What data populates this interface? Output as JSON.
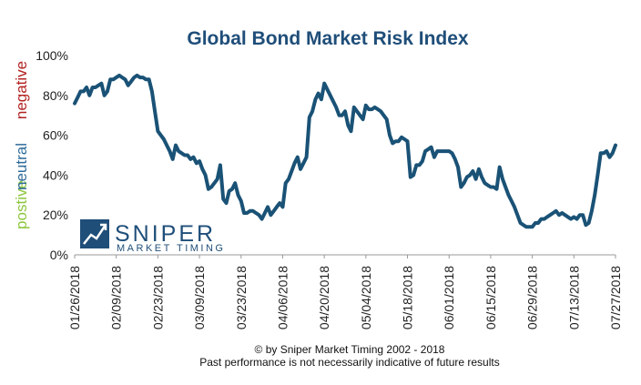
{
  "chart_data": {
    "type": "line",
    "title": "Global Bond Market Risk Index",
    "ylim": [
      0,
      100
    ],
    "y_ticks": [
      "0%",
      "20%",
      "40%",
      "60%",
      "80%",
      "100%"
    ],
    "x_ticks": [
      "01/26/2018",
      "02/09/2018",
      "02/23/2018",
      "03/09/2018",
      "03/23/2018",
      "04/06/2018",
      "04/20/2018",
      "05/04/2018",
      "05/18/2018",
      "06/01/2018",
      "06/15/2018",
      "06/29/2018",
      "07/13/2018",
      "07/27/2018"
    ],
    "zone_labels": {
      "positive": "postive",
      "neutral": "neutral",
      "negative": "negative"
    },
    "grid": false,
    "series": [
      {
        "x": [
          "2018-01-26",
          "2018-01-27",
          "2018-01-28",
          "2018-01-29",
          "2018-01-30",
          "2018-01-31",
          "2018-02-01",
          "2018-02-02",
          "2018-02-03",
          "2018-02-04",
          "2018-02-05",
          "2018-02-06",
          "2018-02-07",
          "2018-02-08",
          "2018-02-09",
          "2018-02-10",
          "2018-02-11",
          "2018-02-12",
          "2018-02-13",
          "2018-02-14",
          "2018-02-15",
          "2018-02-16",
          "2018-02-17",
          "2018-02-18",
          "2018-02-19",
          "2018-02-20",
          "2018-02-21",
          "2018-02-22",
          "2018-02-23",
          "2018-02-25",
          "2018-02-27",
          "2018-02-28",
          "2018-03-01",
          "2018-03-02",
          "2018-03-03",
          "2018-03-04",
          "2018-03-05",
          "2018-03-06",
          "2018-03-07",
          "2018-03-08",
          "2018-03-09",
          "2018-03-10",
          "2018-03-11",
          "2018-03-12",
          "2018-03-13",
          "2018-03-14",
          "2018-03-15",
          "2018-03-16",
          "2018-03-17",
          "2018-03-18",
          "2018-03-19",
          "2018-03-20",
          "2018-03-21",
          "2018-03-22",
          "2018-03-23",
          "2018-03-24",
          "2018-03-25",
          "2018-03-26",
          "2018-03-27",
          "2018-03-28",
          "2018-03-29",
          "2018-03-30",
          "2018-03-31",
          "2018-04-01",
          "2018-04-02",
          "2018-04-03",
          "2018-04-04",
          "2018-04-05",
          "2018-04-06",
          "2018-04-07",
          "2018-04-08",
          "2018-04-09",
          "2018-04-10",
          "2018-04-11",
          "2018-04-12",
          "2018-04-13",
          "2018-04-14",
          "2018-04-15",
          "2018-04-16",
          "2018-04-17",
          "2018-04-18",
          "2018-04-19",
          "2018-04-20",
          "2018-04-22",
          "2018-04-24",
          "2018-04-25",
          "2018-04-26",
          "2018-04-27",
          "2018-04-28",
          "2018-04-29",
          "2018-04-30",
          "2018-05-01",
          "2018-05-02",
          "2018-05-03",
          "2018-05-04",
          "2018-05-05",
          "2018-05-06",
          "2018-05-07",
          "2018-05-08",
          "2018-05-09",
          "2018-05-10",
          "2018-05-11",
          "2018-05-12",
          "2018-05-13",
          "2018-05-14",
          "2018-05-15",
          "2018-05-16",
          "2018-05-17",
          "2018-05-18",
          "2018-05-19",
          "2018-05-20",
          "2018-05-21",
          "2018-05-22",
          "2018-05-23",
          "2018-05-24",
          "2018-05-25",
          "2018-05-26",
          "2018-05-27",
          "2018-05-28",
          "2018-05-29",
          "2018-05-30",
          "2018-05-31",
          "2018-06-01",
          "2018-06-02",
          "2018-06-03",
          "2018-06-04",
          "2018-06-05",
          "2018-06-06",
          "2018-06-07",
          "2018-06-08",
          "2018-06-09",
          "2018-06-10",
          "2018-06-11",
          "2018-06-12",
          "2018-06-13",
          "2018-06-14",
          "2018-06-15",
          "2018-06-16",
          "2018-06-17",
          "2018-06-18",
          "2018-06-19",
          "2018-06-20",
          "2018-06-21",
          "2018-06-22",
          "2018-06-23",
          "2018-06-24",
          "2018-06-25",
          "2018-06-26",
          "2018-06-27",
          "2018-06-28",
          "2018-06-29",
          "2018-06-30",
          "2018-07-01",
          "2018-07-02",
          "2018-07-03",
          "2018-07-04",
          "2018-07-05",
          "2018-07-06",
          "2018-07-07",
          "2018-07-08",
          "2018-07-09",
          "2018-07-10",
          "2018-07-11",
          "2018-07-12",
          "2018-07-13",
          "2018-07-14",
          "2018-07-15",
          "2018-07-16",
          "2018-07-17",
          "2018-07-18",
          "2018-07-19",
          "2018-07-20",
          "2018-07-21",
          "2018-07-22",
          "2018-07-23",
          "2018-07-24",
          "2018-07-25",
          "2018-07-26",
          "2018-07-27"
        ],
        "y": [
          76,
          79,
          82,
          82,
          84,
          80,
          84,
          84,
          85,
          86,
          80,
          82,
          88,
          88,
          89,
          90,
          89,
          88,
          85,
          87,
          89,
          90,
          89,
          89,
          88,
          88,
          82,
          72,
          62,
          58,
          52,
          48,
          55,
          52,
          51,
          50,
          50,
          48,
          49,
          46,
          47,
          43,
          40,
          33,
          34,
          36,
          38,
          45,
          28,
          26,
          32,
          33,
          36,
          30,
          27,
          21,
          21,
          22,
          22,
          21,
          20,
          18,
          21,
          24,
          20,
          22,
          24,
          26,
          24,
          36,
          38,
          42,
          46,
          49,
          43,
          46,
          49,
          69,
          72,
          78,
          81,
          78,
          86,
          80,
          74,
          70,
          70,
          72,
          65,
          62,
          74,
          72,
          70,
          68,
          75,
          73,
          73,
          74,
          73,
          72,
          70,
          68,
          60,
          56,
          57,
          57,
          59,
          58,
          57,
          39,
          40,
          45,
          45,
          47,
          52,
          53,
          54,
          49,
          52,
          52,
          52,
          52,
          52,
          51,
          48,
          44,
          34,
          36,
          39,
          40,
          42,
          38,
          43,
          39,
          36,
          35,
          34,
          34,
          33,
          44,
          38,
          34,
          30,
          27,
          24,
          20,
          16,
          15,
          14,
          14,
          14,
          16,
          16,
          18,
          18,
          19,
          20,
          21,
          22,
          20,
          21,
          20,
          19,
          18,
          19,
          18,
          20,
          20,
          15,
          16,
          22,
          30,
          40,
          51,
          51,
          52,
          49,
          51,
          55
        ]
      }
    ]
  },
  "footer": {
    "line1": "© by Sniper Market Timing 2002 - 2018",
    "line2": "Past performance is not necessarily indicative of future results"
  },
  "logo": {
    "name": "SNIPER",
    "tagline": "MARKET TIMING"
  },
  "colors": {
    "line": "#1a5276",
    "title": "#1f4e79",
    "positive": "#8dc63f",
    "neutral": "#2e6b9a",
    "negative": "#b22222",
    "logo": "#1f4e79",
    "axis": "#999999"
  }
}
